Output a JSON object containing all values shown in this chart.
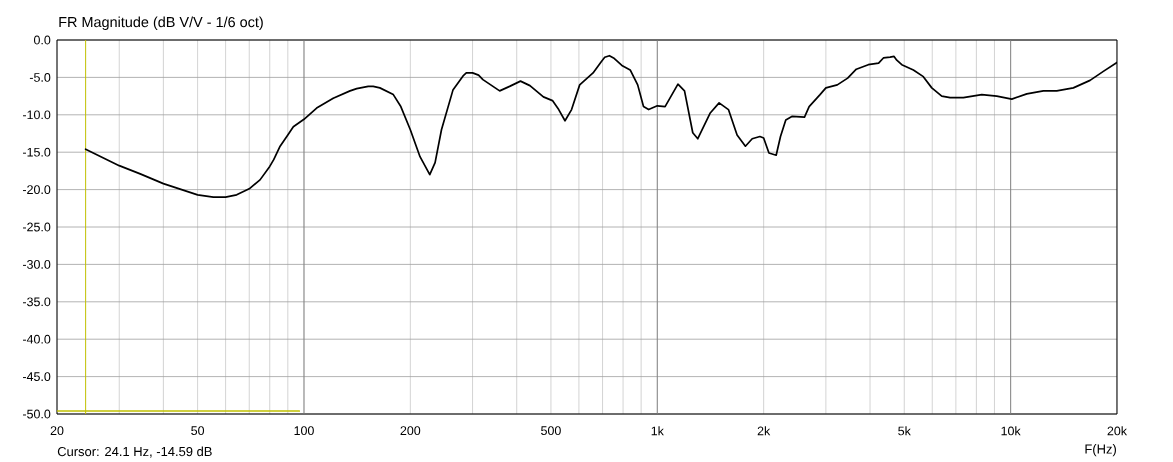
{
  "chart_data": {
    "type": "line",
    "title": "FR Magnitude (dB V/V - 1/6 oct)",
    "xlabel": "F(Hz)",
    "annotations": [
      "Cursor: 24.1 Hz, -14.59 dB"
    ],
    "log": "x",
    "grid": true,
    "xlim": [
      20,
      20000
    ],
    "ylim": [
      -50,
      0
    ],
    "xticks": [
      20,
      {
        "value": 30,
        "label": null
      },
      {
        "value": 40,
        "label": null
      },
      50,
      {
        "value": 60,
        "label": null
      },
      {
        "value": 70,
        "label": null
      },
      {
        "value": 80,
        "label": null
      },
      {
        "value": 90,
        "label": null
      },
      100,
      200,
      {
        "value": 300,
        "label": null
      },
      {
        "value": 400,
        "label": null
      },
      500,
      {
        "value": 600,
        "label": null
      },
      {
        "value": 700,
        "label": null
      },
      {
        "value": 800,
        "label": null
      },
      {
        "value": 900,
        "label": null
      },
      {
        "value": 1000,
        "label": "1k"
      },
      {
        "value": 2000,
        "label": "2k"
      },
      {
        "value": 3000,
        "label": null
      },
      {
        "value": 4000,
        "label": null
      },
      {
        "value": 5000,
        "label": "5k"
      },
      {
        "value": 6000,
        "label": null
      },
      {
        "value": 7000,
        "label": null
      },
      {
        "value": 8000,
        "label": null
      },
      {
        "value": 9000,
        "label": null
      },
      {
        "value": 10000,
        "label": "10k"
      },
      {
        "value": 20000,
        "label": "20k"
      }
    ],
    "yticks": [
      {
        "value": 0,
        "label": "0.0"
      },
      {
        "value": -5,
        "label": "-5.0"
      },
      {
        "value": -10,
        "label": "-10.0"
      },
      {
        "value": -15,
        "label": "-15.0"
      },
      {
        "value": -20,
        "label": "-20.0"
      },
      {
        "value": -25,
        "label": "-25.0"
      },
      {
        "value": -30,
        "label": "-30.0"
      },
      {
        "value": -35,
        "label": "-35.0"
      },
      {
        "value": -40,
        "label": "-40.0"
      },
      {
        "value": -45,
        "label": "-45.0"
      },
      {
        "value": -50,
        "label": "-50.0"
      }
    ],
    "series": [
      {
        "color": "#000000",
        "x": [
          24.1,
          30,
          34.4,
          40,
          50,
          55.4,
          60,
          64.5,
          70,
          75.1,
          80,
          82.1,
          85.6,
          90,
          93.3,
          100,
          108.6,
          121,
          135,
          141,
          152,
          157,
          164,
          179,
          188,
          200,
          213,
          227,
          235,
          245,
          264,
          282,
          288,
          300,
          312,
          321,
          358,
          382,
          410,
          436,
          476,
          505,
          526,
          548,
          572,
          603,
          658,
          694,
          710,
          732,
          752,
          794,
          838,
          880,
          914,
          945,
          1000,
          1052,
          1144,
          1194,
          1260,
          1302,
          1410,
          1496,
          1590,
          1682,
          1776,
          1856,
          1952,
          2000,
          2070,
          2170,
          2232,
          2310,
          2410,
          2610,
          2690,
          2888,
          3000,
          3232,
          3458,
          3658,
          3956,
          4230,
          4364,
          4560,
          4678,
          4762,
          4920,
          5306,
          5662,
          5982,
          6384,
          6740,
          7350,
          8286,
          9138,
          10076,
          11112,
          12380,
          13508,
          15052,
          16780,
          18300,
          20000
        ],
        "values": [
          -14.6,
          -16.8,
          -17.9,
          -19.2,
          -20.7,
          -21.0,
          -21.0,
          -20.7,
          -19.9,
          -18.7,
          -16.9,
          -16.0,
          -14.2,
          -12.7,
          -11.6,
          -10.6,
          -9.1,
          -7.8,
          -6.8,
          -6.5,
          -6.2,
          -6.2,
          -6.4,
          -7.3,
          -8.9,
          -12.0,
          -15.6,
          -18.0,
          -16.4,
          -12.0,
          -6.7,
          -4.8,
          -4.4,
          -4.4,
          -4.7,
          -5.3,
          -6.8,
          -6.2,
          -5.5,
          -6.1,
          -7.6,
          -8.1,
          -9.3,
          -10.8,
          -9.3,
          -6.0,
          -4.4,
          -2.9,
          -2.3,
          -2.1,
          -2.4,
          -3.4,
          -4.0,
          -6.0,
          -8.9,
          -9.3,
          -8.8,
          -8.9,
          -5.9,
          -6.8,
          -12.4,
          -13.2,
          -9.8,
          -8.4,
          -9.3,
          -12.7,
          -14.2,
          -13.2,
          -12.9,
          -13.1,
          -15.1,
          -15.4,
          -12.9,
          -10.7,
          -10.2,
          -10.3,
          -8.9,
          -7.3,
          -6.4,
          -6.0,
          -5.1,
          -3.9,
          -3.3,
          -3.1,
          -2.4,
          -2.3,
          -2.2,
          -2.7,
          -3.3,
          -4.0,
          -4.9,
          -6.4,
          -7.5,
          -7.7,
          -7.7,
          -7.3,
          -7.5,
          -7.9,
          -7.2,
          -6.8,
          -6.8,
          -6.4,
          -5.4,
          -4.2,
          -3.0
        ]
      },
      {
        "color": "#c0c000",
        "x": [
          20,
          97
        ],
        "values": [
          -49.6,
          -49.6
        ]
      }
    ],
    "ref_lines": [
      {
        "axis": "x",
        "value": 24.1,
        "color": "#c0c000"
      }
    ]
  }
}
